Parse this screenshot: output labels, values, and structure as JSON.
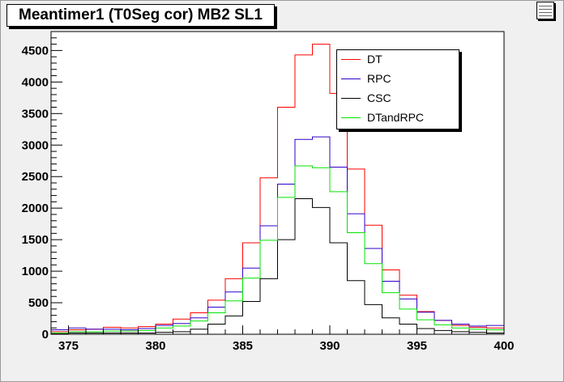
{
  "chart_data": {
    "type": "line",
    "title": "Meantimer1 (T0Seg cor) MB2 SL1",
    "xlabel": "",
    "ylabel": "",
    "xlim": [
      374,
      400
    ],
    "ylim": [
      0,
      4800
    ],
    "x_ticks": [
      375,
      380,
      385,
      390,
      395,
      400
    ],
    "y_ticks": [
      0,
      500,
      1000,
      1500,
      2000,
      2500,
      3000,
      3500,
      4000,
      4500
    ],
    "bin_edges": [
      374,
      375,
      376,
      377,
      378,
      379,
      380,
      381,
      382,
      383,
      384,
      385,
      386,
      387,
      388,
      389,
      390,
      391,
      392,
      393,
      394,
      395,
      396,
      397,
      398,
      399,
      400
    ],
    "legend_position": "top-right",
    "grid": false,
    "series": [
      {
        "name": "DT",
        "color": "#ff0000",
        "values": [
          40,
          70,
          80,
          110,
          100,
          120,
          160,
          240,
          340,
          540,
          880,
          1450,
          2480,
          3600,
          4430,
          4600,
          3820,
          2620,
          1730,
          1020,
          620,
          360,
          220,
          140,
          110,
          100
        ]
      },
      {
        "name": "RPC",
        "color": "#3200c8",
        "values": [
          70,
          100,
          80,
          80,
          70,
          90,
          140,
          170,
          260,
          430,
          670,
          1050,
          1720,
          2380,
          3090,
          3130,
          2650,
          1910,
          1360,
          840,
          560,
          350,
          220,
          160,
          130,
          140
        ]
      },
      {
        "name": "CSC",
        "color": "#000000",
        "values": [
          10,
          20,
          20,
          20,
          20,
          20,
          30,
          40,
          80,
          160,
          290,
          520,
          880,
          1500,
          2150,
          2010,
          1450,
          850,
          470,
          260,
          160,
          90,
          60,
          40,
          30,
          20
        ]
      },
      {
        "name": "DTandRPC",
        "color": "#00e600",
        "values": [
          20,
          40,
          40,
          50,
          50,
          60,
          100,
          130,
          210,
          340,
          530,
          890,
          1490,
          2170,
          2670,
          2640,
          2260,
          1610,
          1120,
          660,
          400,
          230,
          150,
          100,
          80,
          70
        ]
      }
    ]
  }
}
